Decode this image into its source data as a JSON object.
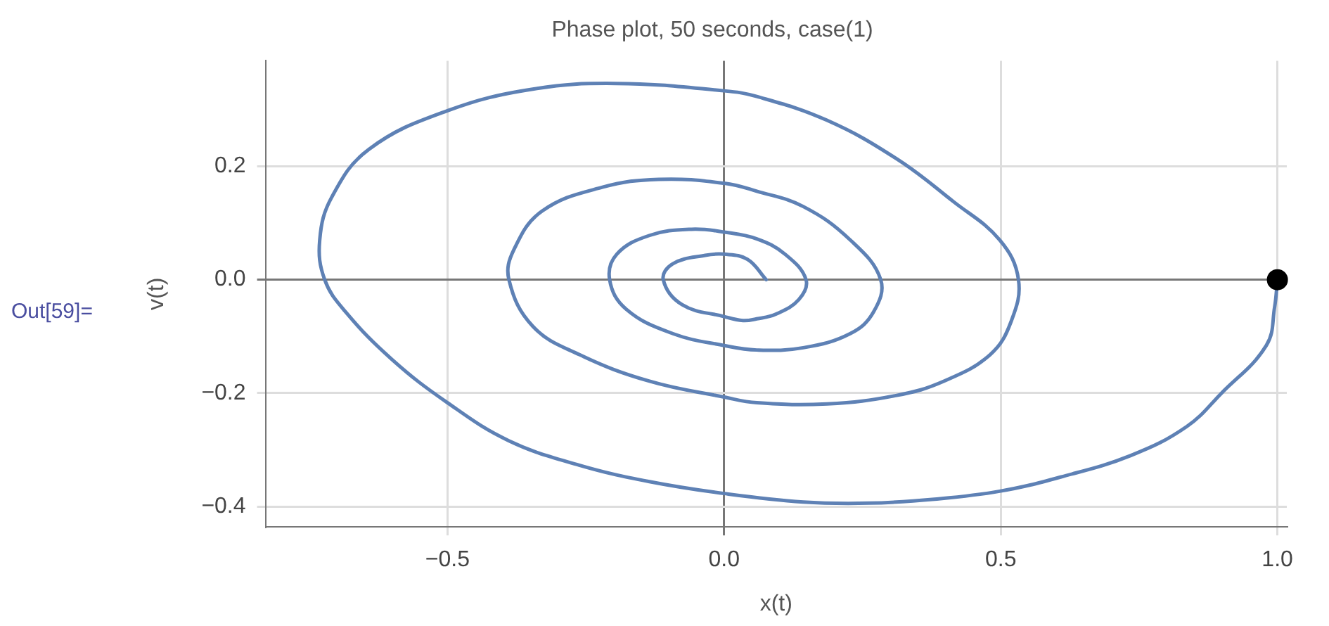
{
  "chart_data": {
    "type": "line",
    "title": "Phase plot, 50 seconds, case(1)",
    "xlabel": "x(t)",
    "ylabel": "v(t)",
    "annotations": [
      "Out[59]="
    ],
    "xlim": [
      -0.829,
      1.017
    ],
    "ylim": [
      -0.436,
      0.386
    ],
    "xticks": [
      {
        "value": -0.5,
        "label": "−0.5"
      },
      {
        "value": 0,
        "label": "0.0"
      },
      {
        "value": 0.5,
        "label": "0.5"
      },
      {
        "value": 1,
        "label": "1.0"
      }
    ],
    "yticks": [
      {
        "value": -0.4,
        "label": "−0.4"
      },
      {
        "value": -0.2,
        "label": "−0.2"
      },
      {
        "value": 0,
        "label": "0.0"
      },
      {
        "value": 0.2,
        "label": "0.2"
      }
    ],
    "grid": true,
    "legend": false,
    "marker": "none",
    "line_style": "solid",
    "series": [
      {
        "color": "#5e81b5",
        "x": [
          1.0,
          0.995,
          0.98,
          0.899,
          0.836,
          0.735,
          0.608,
          0.498,
          0.38,
          0.262,
          0.143,
          0,
          -0.135,
          -0.262,
          -0.389,
          -0.5,
          -0.6,
          -0.684,
          -0.722,
          -0.731,
          -0.709,
          -0.642,
          -0.5,
          -0.346,
          -0.194,
          0,
          0.059,
          0.186,
          0.312,
          0.414,
          0.498,
          0.532,
          0.519,
          0.481,
          0.397,
          0.312,
          0.186,
          0.059,
          0,
          -0.135,
          -0.262,
          -0.346,
          -0.389,
          -0.38,
          -0.329,
          -0.22,
          -0.118,
          0,
          0.059,
          0.143,
          0.228,
          0.283,
          0.27,
          0.228,
          0.143,
          0.059,
          0,
          -0.093,
          -0.177,
          -0.207,
          -0.194,
          -0.135,
          -0.059,
          0,
          0.059,
          0.11,
          0.148,
          0.135,
          0.093,
          0.059,
          0.034,
          0,
          -0.076,
          -0.11,
          -0.093,
          -0.034,
          0,
          0.042,
          0.076
        ],
        "values": [
          0,
          -0.048,
          -0.116,
          -0.2,
          -0.259,
          -0.31,
          -0.348,
          -0.373,
          -0.387,
          -0.394,
          -0.392,
          -0.377,
          -0.356,
          -0.327,
          -0.284,
          -0.217,
          -0.141,
          -0.057,
          0,
          0.07,
          0.146,
          0.23,
          0.298,
          0.336,
          0.346,
          0.333,
          0.323,
          0.281,
          0.213,
          0.138,
          0.07,
          0,
          -0.073,
          -0.132,
          -0.179,
          -0.204,
          -0.219,
          -0.217,
          -0.207,
          -0.179,
          -0.132,
          -0.082,
          0,
          0.053,
          0.121,
          0.163,
          0.177,
          0.17,
          0.156,
          0.129,
          0.07,
          0,
          -0.057,
          -0.095,
          -0.12,
          -0.124,
          -0.116,
          -0.095,
          -0.052,
          0,
          0.045,
          0.078,
          0.089,
          0.084,
          0.072,
          0.045,
          0,
          -0.035,
          -0.061,
          -0.069,
          -0.072,
          -0.065,
          -0.044,
          0,
          0.028,
          0.043,
          0.045,
          0.036,
          0
        ]
      },
      {
        "type": "scatter",
        "marker": "circle",
        "color": "#000000",
        "x": [
          1.0
        ],
        "values": [
          0
        ]
      }
    ]
  }
}
